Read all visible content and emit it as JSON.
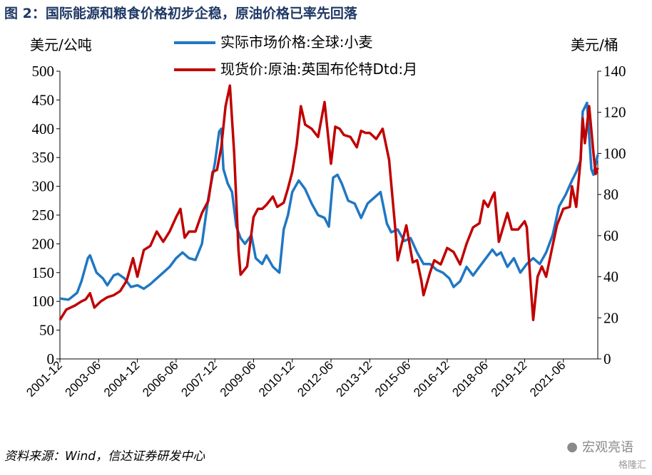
{
  "figure": {
    "title": "图 2：国际能源和粮食价格初步企稳，原油价格已率先回落",
    "source": "资料来源：Wind，信达证券研发中心",
    "watermark": "宏观亮语",
    "watermark_sub": "格隆汇"
  },
  "chart_data": {
    "type": "line",
    "left_unit": "美元/公吨",
    "right_unit": "美元/桶",
    "left_ylim": [
      0,
      500
    ],
    "left_ticks": [
      0,
      50,
      100,
      150,
      200,
      250,
      300,
      350,
      400,
      450,
      500
    ],
    "right_ylim": [
      0,
      140
    ],
    "right_ticks": [
      0,
      20,
      40,
      60,
      80,
      100,
      120,
      140
    ],
    "x_range": [
      "2001-12",
      "2022-10"
    ],
    "x_ticks": [
      "2001-12",
      "2003-06",
      "2004-12",
      "2006-06",
      "2007-12",
      "2009-06",
      "2010-12",
      "2012-06",
      "2013-12",
      "2015-06",
      "2016-12",
      "2018-06",
      "2019-12",
      "2021-06"
    ],
    "grid": false,
    "legend_position": "top-center",
    "series": [
      {
        "name": "实际市场价格:全球:小麦",
        "axis": "left",
        "color": "#1f77c4",
        "points": [
          [
            "2001-12",
            105
          ],
          [
            "2002-04",
            103
          ],
          [
            "2002-08",
            115
          ],
          [
            "2002-10",
            135
          ],
          [
            "2003-01",
            175
          ],
          [
            "2003-02",
            180
          ],
          [
            "2003-05",
            150
          ],
          [
            "2003-08",
            140
          ],
          [
            "2003-10",
            128
          ],
          [
            "2004-01",
            145
          ],
          [
            "2004-03",
            148
          ],
          [
            "2004-06",
            140
          ],
          [
            "2004-09",
            125
          ],
          [
            "2004-12",
            128
          ],
          [
            "2005-03",
            122
          ],
          [
            "2005-06",
            130
          ],
          [
            "2005-09",
            140
          ],
          [
            "2005-12",
            150
          ],
          [
            "2006-03",
            160
          ],
          [
            "2006-06",
            175
          ],
          [
            "2006-09",
            185
          ],
          [
            "2006-12",
            175
          ],
          [
            "2007-03",
            172
          ],
          [
            "2007-06",
            200
          ],
          [
            "2007-09",
            280
          ],
          [
            "2007-12",
            340
          ],
          [
            "2008-02",
            395
          ],
          [
            "2008-03",
            400
          ],
          [
            "2008-04",
            330
          ],
          [
            "2008-06",
            305
          ],
          [
            "2008-08",
            290
          ],
          [
            "2008-10",
            230
          ],
          [
            "2008-12",
            210
          ],
          [
            "2009-02",
            200
          ],
          [
            "2009-05",
            215
          ],
          [
            "2009-07",
            175
          ],
          [
            "2009-10",
            165
          ],
          [
            "2009-12",
            180
          ],
          [
            "2010-03",
            160
          ],
          [
            "2010-06",
            150
          ],
          [
            "2010-08",
            225
          ],
          [
            "2010-10",
            250
          ],
          [
            "2010-12",
            290
          ],
          [
            "2011-03",
            310
          ],
          [
            "2011-06",
            295
          ],
          [
            "2011-09",
            270
          ],
          [
            "2011-12",
            250
          ],
          [
            "2012-03",
            245
          ],
          [
            "2012-05",
            230
          ],
          [
            "2012-07",
            315
          ],
          [
            "2012-09",
            320
          ],
          [
            "2012-11",
            305
          ],
          [
            "2013-02",
            275
          ],
          [
            "2013-05",
            270
          ],
          [
            "2013-08",
            245
          ],
          [
            "2013-11",
            270
          ],
          [
            "2014-02",
            280
          ],
          [
            "2014-05",
            290
          ],
          [
            "2014-08",
            235
          ],
          [
            "2014-10",
            220
          ],
          [
            "2015-01",
            225
          ],
          [
            "2015-04",
            205
          ],
          [
            "2015-07",
            210
          ],
          [
            "2015-10",
            185
          ],
          [
            "2016-01",
            165
          ],
          [
            "2016-04",
            165
          ],
          [
            "2016-07",
            155
          ],
          [
            "2016-10",
            150
          ],
          [
            "2017-01",
            140
          ],
          [
            "2017-03",
            125
          ],
          [
            "2017-06",
            135
          ],
          [
            "2017-09",
            160
          ],
          [
            "2017-12",
            145
          ],
          [
            "2018-03",
            160
          ],
          [
            "2018-06",
            175
          ],
          [
            "2018-09",
            190
          ],
          [
            "2018-11",
            180
          ],
          [
            "2019-01",
            185
          ],
          [
            "2019-04",
            160
          ],
          [
            "2019-07",
            175
          ],
          [
            "2019-10",
            150
          ],
          [
            "2020-01",
            165
          ],
          [
            "2020-04",
            175
          ],
          [
            "2020-07",
            165
          ],
          [
            "2020-10",
            185
          ],
          [
            "2021-01",
            215
          ],
          [
            "2021-04",
            265
          ],
          [
            "2021-07",
            285
          ],
          [
            "2021-10",
            310
          ],
          [
            "2021-12",
            325
          ],
          [
            "2022-02",
            345
          ],
          [
            "2022-03",
            430
          ],
          [
            "2022-05",
            445
          ],
          [
            "2022-07",
            330
          ],
          [
            "2022-08",
            320
          ],
          [
            "2022-10",
            355
          ]
        ]
      },
      {
        "name": "现货价:原油:英国布伦特Dtd:月",
        "axis": "right",
        "color": "#c00000",
        "points": [
          [
            "2001-12",
            19
          ],
          [
            "2002-03",
            24
          ],
          [
            "2002-07",
            26
          ],
          [
            "2002-10",
            28
          ],
          [
            "2002-12",
            29
          ],
          [
            "2003-02",
            32
          ],
          [
            "2003-04",
            25
          ],
          [
            "2003-07",
            28
          ],
          [
            "2003-10",
            30
          ],
          [
            "2004-01",
            31
          ],
          [
            "2004-04",
            33
          ],
          [
            "2004-07",
            38
          ],
          [
            "2004-10",
            49
          ],
          [
            "2004-12",
            40
          ],
          [
            "2005-03",
            53
          ],
          [
            "2005-06",
            55
          ],
          [
            "2005-09",
            62
          ],
          [
            "2005-12",
            57
          ],
          [
            "2006-03",
            62
          ],
          [
            "2006-06",
            69
          ],
          [
            "2006-08",
            73
          ],
          [
            "2006-10",
            59
          ],
          [
            "2006-12",
            62
          ],
          [
            "2007-03",
            62
          ],
          [
            "2007-06",
            71
          ],
          [
            "2007-09",
            77
          ],
          [
            "2007-11",
            91
          ],
          [
            "2008-01",
            92
          ],
          [
            "2008-03",
            103
          ],
          [
            "2008-05",
            123
          ],
          [
            "2008-07",
            133
          ],
          [
            "2008-09",
            100
          ],
          [
            "2008-11",
            53
          ],
          [
            "2008-12",
            41
          ],
          [
            "2009-03",
            45
          ],
          [
            "2009-06",
            69
          ],
          [
            "2009-08",
            73
          ],
          [
            "2009-10",
            73
          ],
          [
            "2009-12",
            75
          ],
          [
            "2010-03",
            79
          ],
          [
            "2010-05",
            74
          ],
          [
            "2010-08",
            76
          ],
          [
            "2010-10",
            83
          ],
          [
            "2010-12",
            91
          ],
          [
            "2011-02",
            104
          ],
          [
            "2011-04",
            123
          ],
          [
            "2011-06",
            114
          ],
          [
            "2011-09",
            112
          ],
          [
            "2011-12",
            108
          ],
          [
            "2012-03",
            125
          ],
          [
            "2012-06",
            95
          ],
          [
            "2012-08",
            113
          ],
          [
            "2012-10",
            112
          ],
          [
            "2012-12",
            109
          ],
          [
            "2013-03",
            108
          ],
          [
            "2013-06",
            103
          ],
          [
            "2013-08",
            111
          ],
          [
            "2013-10",
            110
          ],
          [
            "2013-12",
            110
          ],
          [
            "2014-03",
            107
          ],
          [
            "2014-06",
            112
          ],
          [
            "2014-09",
            97
          ],
          [
            "2014-12",
            62
          ],
          [
            "2015-01",
            48
          ],
          [
            "2015-05",
            65
          ],
          [
            "2015-08",
            47
          ],
          [
            "2015-10",
            48
          ],
          [
            "2015-12",
            38
          ],
          [
            "2016-01",
            31
          ],
          [
            "2016-04",
            42
          ],
          [
            "2016-06",
            48
          ],
          [
            "2016-09",
            46
          ],
          [
            "2016-12",
            54
          ],
          [
            "2017-03",
            52
          ],
          [
            "2017-06",
            46
          ],
          [
            "2017-09",
            56
          ],
          [
            "2017-12",
            64
          ],
          [
            "2018-03",
            66
          ],
          [
            "2018-05",
            77
          ],
          [
            "2018-07",
            74
          ],
          [
            "2018-09",
            79
          ],
          [
            "2018-10",
            81
          ],
          [
            "2018-12",
            57
          ],
          [
            "2019-02",
            64
          ],
          [
            "2019-04",
            71
          ],
          [
            "2019-06",
            63
          ],
          [
            "2019-09",
            63
          ],
          [
            "2019-12",
            67
          ],
          [
            "2020-01",
            64
          ],
          [
            "2020-03",
            33
          ],
          [
            "2020-04",
            19
          ],
          [
            "2020-06",
            40
          ],
          [
            "2020-08",
            45
          ],
          [
            "2020-10",
            40
          ],
          [
            "2020-12",
            50
          ],
          [
            "2021-03",
            65
          ],
          [
            "2021-06",
            73
          ],
          [
            "2021-09",
            74
          ],
          [
            "2021-10",
            84
          ],
          [
            "2021-12",
            74
          ],
          [
            "2022-02",
            97
          ],
          [
            "2022-03",
            117
          ],
          [
            "2022-04",
            105
          ],
          [
            "2022-06",
            123
          ],
          [
            "2022-08",
            100
          ],
          [
            "2022-09",
            90
          ],
          [
            "2022-10",
            93
          ]
        ]
      }
    ]
  }
}
